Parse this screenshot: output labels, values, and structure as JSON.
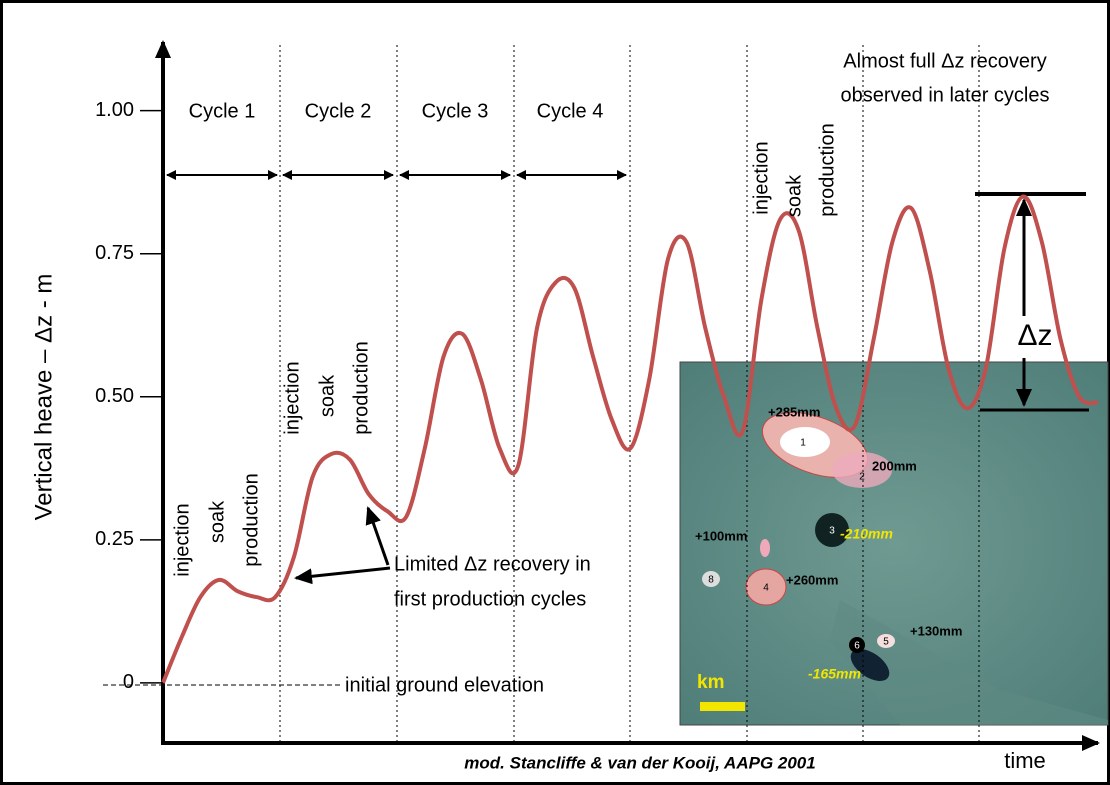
{
  "chart_data": {
    "type": "line",
    "y_label": "Vertical heave – Δz - m",
    "x_label": "time",
    "ylim": [
      -0.105,
      1.12
    ],
    "yticks": [
      0,
      0.25,
      {
        "value": 0.5,
        "label": "0.50"
      },
      {
        "value": 0.75,
        "label": "0.75"
      },
      {
        "value": 1,
        "label": "1.00"
      }
    ],
    "color": "#c0504d",
    "values": [
      0,
      0.08,
      0.15,
      0.18,
      0.16,
      0.15,
      0.15,
      0.22,
      0.36,
      0.4,
      0.39,
      0.33,
      0.3,
      0.29,
      0.41,
      0.57,
      0.61,
      0.53,
      0.41,
      0.38,
      0.62,
      0.7,
      0.69,
      0.57,
      0.46,
      0.41,
      0.53,
      0.74,
      0.77,
      0.62,
      0.5,
      0.44,
      0.67,
      0.81,
      0.79,
      0.62,
      0.48,
      0.45,
      0.6,
      0.77,
      0.83,
      0.72,
      0.55,
      0.48,
      0.55,
      0.76,
      0.85,
      0.77,
      0.6,
      0.5,
      0.49
    ],
    "cycles": [
      "Cycle 1",
      "Cycle 2",
      "Cycle 3",
      "Cycle 4"
    ],
    "phase_labels": [
      [
        "injection",
        "soak",
        "production"
      ],
      [
        "injection",
        "soak",
        "production"
      ],
      [
        "injection",
        "soak",
        "production"
      ]
    ],
    "recovery_later": [
      "Almost full Δz recovery",
      "observed in later cycles"
    ],
    "recovery_first": [
      "Limited Δz recovery in",
      "first production cycles"
    ],
    "baseline_label": "initial ground elevation",
    "delta_label": "Δz",
    "credit": "mod. Stancliffe & van der Kooij, AAPG 2001",
    "map": {
      "labels": [
        "+285mm",
        "200mm",
        "-210mm",
        "+100mm",
        "+260mm",
        "+130mm",
        "-165mm"
      ],
      "sites": [
        "1",
        "2",
        "3",
        "4",
        "5",
        "6",
        "8"
      ],
      "scale": "km"
    }
  }
}
